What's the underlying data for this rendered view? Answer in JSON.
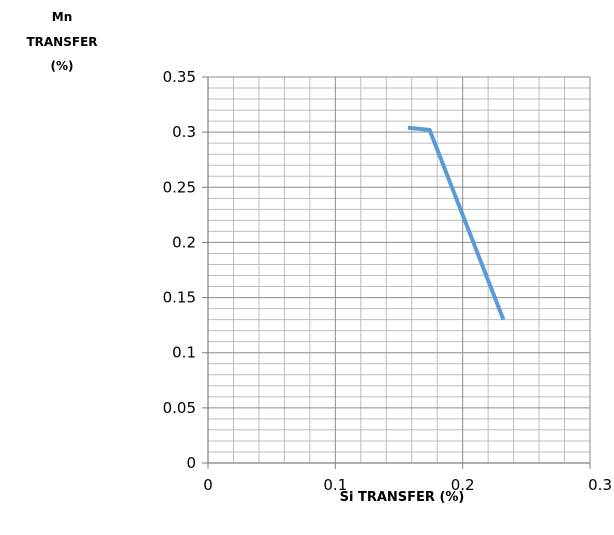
{
  "chart_data": {
    "type": "line",
    "title": "",
    "xlabel": "Si TRANSFER (%)",
    "ylabel_lines": [
      "Mn",
      "TRANSFER",
      "(%)"
    ],
    "xlim": [
      0,
      0.3
    ],
    "ylim": [
      0,
      0.35
    ],
    "x_ticks": [
      "0",
      "0.1",
      "0.2",
      "0.3"
    ],
    "y_ticks": [
      "0",
      "0.05",
      "0.1",
      "0.15",
      "0.2",
      "0.25",
      "0.3",
      "0.35"
    ],
    "grid": true,
    "legend": "none",
    "series": [
      {
        "color": "#5b9bd5",
        "points": [
          {
            "x": 0.157,
            "y": 0.304
          },
          {
            "x": 0.174,
            "y": 0.302
          },
          {
            "x": 0.232,
            "y": 0.13
          }
        ]
      }
    ]
  }
}
